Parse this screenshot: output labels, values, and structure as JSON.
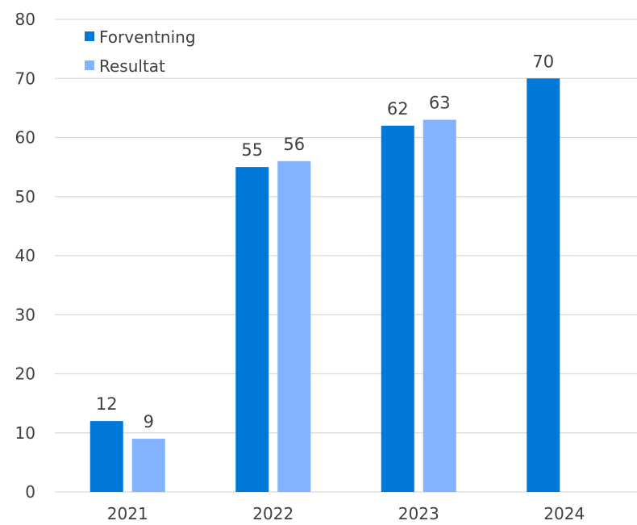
{
  "chart_data": {
    "type": "bar",
    "title": "",
    "xlabel": "",
    "ylabel": "",
    "categories": [
      "2021",
      "2022",
      "2023",
      "2024"
    ],
    "series": [
      {
        "name": "Forventning",
        "values": [
          12,
          55,
          62,
          70
        ],
        "color": "#0078d7"
      },
      {
        "name": "Resultat",
        "values": [
          9,
          56,
          63,
          null
        ],
        "color": "#83b3ff"
      }
    ],
    "ylim": [
      0,
      80
    ],
    "yticks": [
      "0",
      "10",
      "20",
      "30",
      "40",
      "50",
      "60",
      "70",
      "80"
    ],
    "grid": true,
    "legend_position": "top-left"
  }
}
